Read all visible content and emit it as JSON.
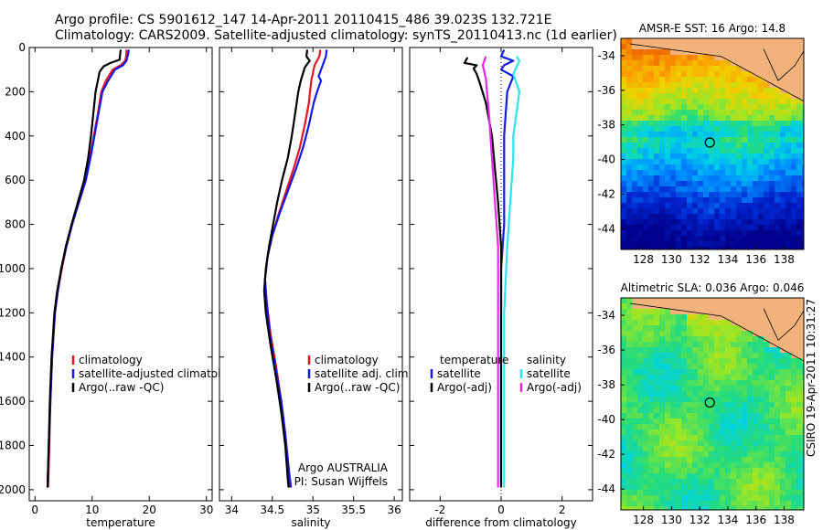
{
  "header": {
    "line1": "Argo profile: CS 5901612_147 14-Apr-2011 20110415_486 39.023S 132.721E",
    "line2": "Climatology: CARS2009. Satellite-adjusted climatology: synTS_20110413.nc (1d earlier)"
  },
  "credit": "CSIRO 19-Apr-2011 10:31:27",
  "colors": {
    "red": "#e8141e",
    "blue": "#1418e8",
    "black": "#000000",
    "cyan": "#28e6ee",
    "magenta": "#e628e6"
  },
  "chart_data": [
    {
      "type": "line",
      "xlabel": "temperature",
      "xlim": [
        -1,
        31
      ],
      "ylim": [
        0,
        2050
      ],
      "y_reversed": true,
      "xticks": [
        "0",
        "10",
        "20",
        "30"
      ],
      "xtick_values": [
        0,
        10,
        20,
        30
      ],
      "yticks": [
        "0",
        "200",
        "400",
        "600",
        "800",
        "1000",
        "1200",
        "1400",
        "1600",
        "1800",
        "2000"
      ],
      "ytick_values": [
        0,
        200,
        400,
        600,
        800,
        1000,
        1200,
        1400,
        1600,
        1800,
        2000
      ],
      "legend": [
        "climatology",
        "satellite-adjusted climatology",
        "Argo(..raw -QC)"
      ],
      "series": [
        {
          "name": "climatology",
          "color": "red",
          "points": [
            [
              16.0,
              10
            ],
            [
              16.0,
              30
            ],
            [
              15.8,
              60
            ],
            [
              15.0,
              80
            ],
            [
              13.6,
              100
            ],
            [
              12.4,
              150
            ],
            [
              11.6,
              200
            ],
            [
              11.0,
              300
            ],
            [
              10.3,
              400
            ],
            [
              9.6,
              500
            ],
            [
              8.8,
              600
            ],
            [
              7.6,
              700
            ],
            [
              6.5,
              800
            ],
            [
              5.5,
              900
            ],
            [
              4.7,
              1000
            ],
            [
              4.0,
              1100
            ],
            [
              3.5,
              1200
            ],
            [
              3.0,
              1400
            ],
            [
              2.7,
              1600
            ],
            [
              2.5,
              1800
            ],
            [
              2.3,
              1990
            ]
          ]
        },
        {
          "name": "satellite-adjusted climatology",
          "color": "blue",
          "points": [
            [
              16.4,
              10
            ],
            [
              16.3,
              30
            ],
            [
              16.0,
              60
            ],
            [
              15.4,
              80
            ],
            [
              14.0,
              100
            ],
            [
              12.8,
              150
            ],
            [
              11.8,
              200
            ],
            [
              11.1,
              300
            ],
            [
              10.4,
              400
            ],
            [
              9.7,
              500
            ],
            [
              8.9,
              600
            ],
            [
              7.7,
              700
            ],
            [
              6.5,
              800
            ],
            [
              5.5,
              900
            ],
            [
              4.6,
              1000
            ],
            [
              4.0,
              1100
            ],
            [
              3.5,
              1200
            ],
            [
              3.0,
              1400
            ],
            [
              2.7,
              1600
            ],
            [
              2.4,
              1800
            ],
            [
              2.2,
              1990
            ]
          ]
        },
        {
          "name": "Argo(..raw -QC)",
          "color": "black",
          "points": [
            [
              15.0,
              10
            ],
            [
              14.9,
              30
            ],
            [
              14.8,
              55
            ],
            [
              13.2,
              70
            ],
            [
              12.0,
              85
            ],
            [
              11.3,
              110
            ],
            [
              11.0,
              150
            ],
            [
              10.6,
              200
            ],
            [
              10.2,
              300
            ],
            [
              9.8,
              400
            ],
            [
              9.3,
              500
            ],
            [
              8.6,
              600
            ],
            [
              7.5,
              700
            ],
            [
              6.4,
              800
            ],
            [
              5.4,
              900
            ],
            [
              4.6,
              1000
            ],
            [
              3.9,
              1100
            ],
            [
              3.4,
              1200
            ],
            [
              2.9,
              1400
            ],
            [
              2.6,
              1600
            ],
            [
              2.4,
              1800
            ],
            [
              2.2,
              1990
            ]
          ]
        }
      ]
    },
    {
      "type": "line",
      "xlabel": "salinity",
      "xlim": [
        33.85,
        36.1
      ],
      "ylim": [
        0,
        2050
      ],
      "y_reversed": true,
      "xticks": [
        "34",
        "34.5",
        "35",
        "35.5",
        "36"
      ],
      "xtick_values": [
        34,
        34.5,
        35,
        35.5,
        36
      ],
      "legend": [
        "climatology",
        "satellite adj. clim.",
        "Argo(..raw -QC)"
      ],
      "annotation": [
        "Argo AUSTRALIA",
        "PI: Susan Wijffels"
      ],
      "series": [
        {
          "name": "climatology",
          "color": "red",
          "points": [
            [
              35.09,
              10
            ],
            [
              35.08,
              40
            ],
            [
              35.02,
              80
            ],
            [
              34.98,
              150
            ],
            [
              34.95,
              250
            ],
            [
              34.9,
              350
            ],
            [
              34.84,
              450
            ],
            [
              34.76,
              550
            ],
            [
              34.67,
              650
            ],
            [
              34.58,
              750
            ],
            [
              34.5,
              850
            ],
            [
              34.44,
              950
            ],
            [
              34.41,
              1050
            ],
            [
              34.43,
              1150
            ],
            [
              34.48,
              1300
            ],
            [
              34.55,
              1450
            ],
            [
              34.61,
              1600
            ],
            [
              34.66,
              1750
            ],
            [
              34.7,
              1900
            ],
            [
              34.72,
              1990
            ]
          ]
        },
        {
          "name": "satellite adj. clim.",
          "color": "blue",
          "points": [
            [
              35.17,
              10
            ],
            [
              35.16,
              40
            ],
            [
              35.12,
              80
            ],
            [
              35.07,
              130
            ],
            [
              35.1,
              150
            ],
            [
              35.05,
              200
            ],
            [
              35.01,
              250
            ],
            [
              34.95,
              350
            ],
            [
              34.88,
              450
            ],
            [
              34.79,
              550
            ],
            [
              34.69,
              650
            ],
            [
              34.59,
              750
            ],
            [
              34.5,
              850
            ],
            [
              34.44,
              950
            ],
            [
              34.41,
              1050
            ],
            [
              34.43,
              1150
            ],
            [
              34.47,
              1300
            ],
            [
              34.54,
              1450
            ],
            [
              34.61,
              1600
            ],
            [
              34.66,
              1750
            ],
            [
              34.7,
              1900
            ],
            [
              34.73,
              1990
            ]
          ]
        },
        {
          "name": "Argo(..raw -QC)",
          "color": "black",
          "points": [
            [
              34.93,
              10
            ],
            [
              34.92,
              40
            ],
            [
              34.96,
              60
            ],
            [
              34.9,
              90
            ],
            [
              34.85,
              150
            ],
            [
              34.82,
              200
            ],
            [
              34.78,
              300
            ],
            [
              34.74,
              400
            ],
            [
              34.69,
              500
            ],
            [
              34.62,
              600
            ],
            [
              34.56,
              700
            ],
            [
              34.51,
              800
            ],
            [
              34.46,
              900
            ],
            [
              34.42,
              1000
            ],
            [
              34.4,
              1100
            ],
            [
              34.42,
              1200
            ],
            [
              34.48,
              1350
            ],
            [
              34.55,
              1500
            ],
            [
              34.61,
              1650
            ],
            [
              34.66,
              1800
            ],
            [
              34.69,
              1950
            ],
            [
              34.7,
              1990
            ]
          ]
        }
      ]
    },
    {
      "type": "line",
      "xlabel": "difference from climatology",
      "xlim": [
        -3,
        3
      ],
      "ylim": [
        0,
        2050
      ],
      "y_reversed": true,
      "xticks": [
        "-2",
        "0",
        "2"
      ],
      "xtick_values": [
        -2,
        0,
        2
      ],
      "legend_left": [
        "temperature",
        "satellite",
        "Argo(-adj)"
      ],
      "legend_right": [
        "salinity",
        "satellite",
        "Argo(-adj)"
      ],
      "series": [
        {
          "name": "temperature satellite",
          "color": "blue",
          "points": [
            [
              0.1,
              10
            ],
            [
              0.0,
              40
            ],
            [
              0.4,
              60
            ],
            [
              0.1,
              80
            ],
            [
              0.0,
              100
            ],
            [
              0.4,
              130
            ],
            [
              0.2,
              200
            ],
            [
              0.1,
              400
            ],
            [
              0.1,
              800
            ],
            [
              0.0,
              1000
            ],
            [
              0.0,
              1990
            ]
          ]
        },
        {
          "name": "temperature Argo(-adj)",
          "color": "black",
          "points": [
            [
              -1.1,
              45
            ],
            [
              -1.2,
              70
            ],
            [
              -0.8,
              80
            ],
            [
              -0.9,
              95
            ],
            [
              -0.8,
              120
            ],
            [
              -0.7,
              160
            ],
            [
              -0.5,
              250
            ],
            [
              -0.3,
              400
            ],
            [
              -0.2,
              550
            ],
            [
              -0.1,
              700
            ],
            [
              0.0,
              900
            ],
            [
              0.0,
              1990
            ]
          ]
        },
        {
          "name": "salinity satellite",
          "color": "cyan",
          "points": [
            [
              0.5,
              40
            ],
            [
              0.6,
              60
            ],
            [
              0.4,
              120
            ],
            [
              0.6,
              200
            ],
            [
              0.5,
              300
            ],
            [
              0.4,
              400
            ],
            [
              0.4,
              500
            ],
            [
              0.3,
              700
            ],
            [
              0.2,
              900
            ],
            [
              0.1,
              1200
            ],
            [
              0.1,
              1990
            ]
          ]
        },
        {
          "name": "salinity Argo(-adj)",
          "color": "magenta",
          "points": [
            [
              -0.5,
              40
            ],
            [
              -0.6,
              80
            ],
            [
              -0.5,
              140
            ],
            [
              -0.4,
              300
            ],
            [
              -0.3,
              500
            ],
            [
              -0.2,
              700
            ],
            [
              -0.1,
              900
            ],
            [
              -0.1,
              1100
            ],
            [
              -0.1,
              1990
            ]
          ]
        }
      ]
    },
    {
      "type": "heatmap",
      "title": "AMSR-E SST: 16 Argo: 14.8",
      "xticks": [
        "128",
        "130",
        "132",
        "134",
        "136",
        "138"
      ],
      "xtick_values": [
        128,
        130,
        132,
        134,
        136,
        138
      ],
      "yticks": [
        "-34",
        "-36",
        "-38",
        "-40",
        "-42",
        "-44"
      ],
      "ytick_values": [
        -34,
        -36,
        -38,
        -40,
        -42,
        -44
      ],
      "xlim": [
        126.4,
        139.4
      ],
      "ylim": [
        -45.2,
        -33.0
      ],
      "marker": [
        132.72,
        -39.02
      ]
    },
    {
      "type": "heatmap",
      "title": "Altimetric SLA: 0.036 Argo: 0.046",
      "xticks": [
        "128",
        "130",
        "132",
        "134",
        "136",
        "138"
      ],
      "xtick_values": [
        128,
        130,
        132,
        134,
        136,
        138
      ],
      "yticks": [
        "-34",
        "-36",
        "-38",
        "-40",
        "-42",
        "-44"
      ],
      "ytick_values": [
        -34,
        -36,
        -38,
        -40,
        -42,
        -44
      ],
      "xlim": [
        126.4,
        139.4
      ],
      "ylim": [
        -45.2,
        -33.0
      ],
      "marker": [
        132.72,
        -39.02
      ]
    }
  ]
}
